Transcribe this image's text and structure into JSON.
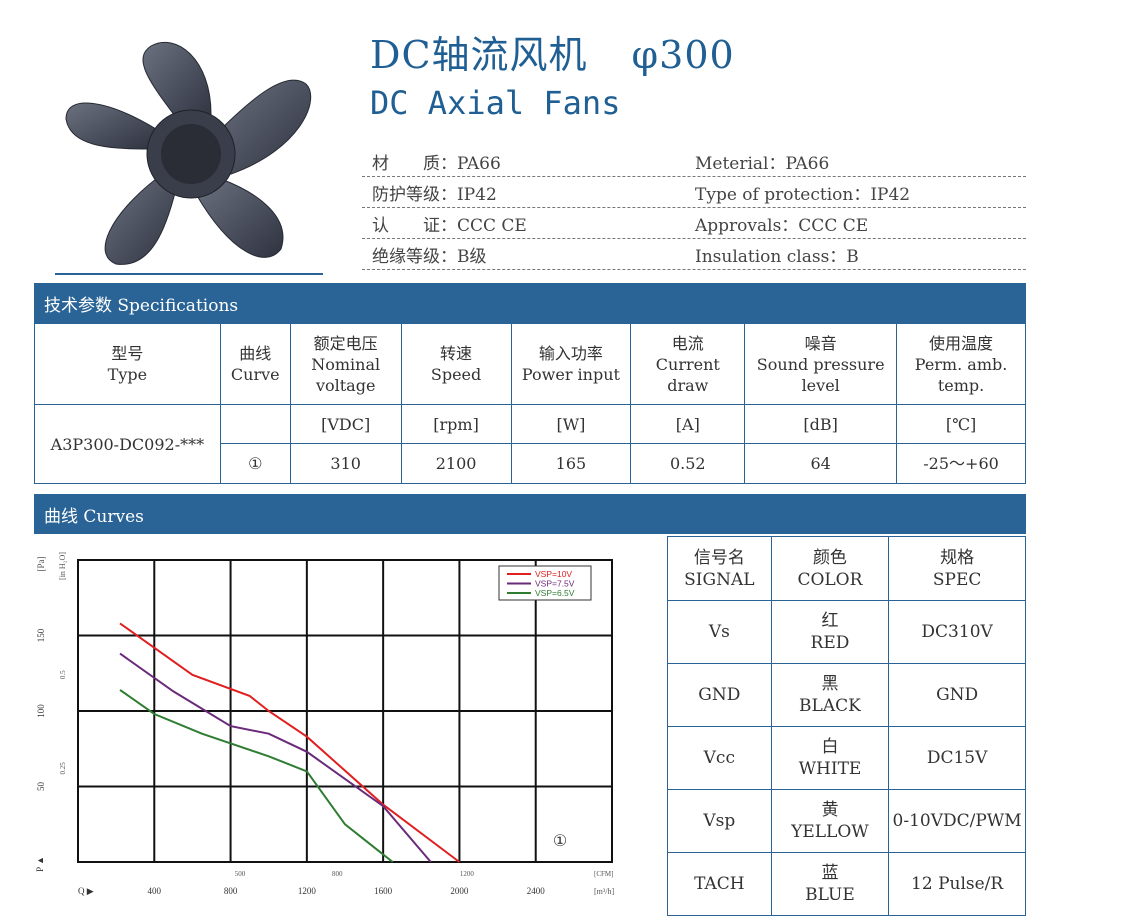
{
  "header": {
    "title_cn": "DC轴流风机",
    "title_size": "φ300",
    "title_en": "DC Axial Fans",
    "info": [
      {
        "cn": "材　　质：PA66",
        "en": "Meterial：PA66"
      },
      {
        "cn": "防护等级：IP42",
        "en": "Type of protection：IP42"
      },
      {
        "cn": "认　　证：CCC CE",
        "en": "Approvals：CCC CE"
      },
      {
        "cn": "绝缘等级：B级",
        "en": "Insulation class：B"
      }
    ]
  },
  "specs": {
    "bar": "技术参数 Specifications",
    "headers": [
      {
        "cn": "型号",
        "en": "Type"
      },
      {
        "cn": "曲线",
        "en": "Curve"
      },
      {
        "cn": "额定电压",
        "en1": "Nominal",
        "en2": "voltage"
      },
      {
        "cn": "转速",
        "en": "Speed"
      },
      {
        "cn": "输入功率",
        "en": "Power input"
      },
      {
        "cn": "电流",
        "en1": "Current",
        "en2": "draw"
      },
      {
        "cn": "噪音",
        "en1": "Sound pressure",
        "en2": "level"
      },
      {
        "cn": "使用温度",
        "en1": "Perm. amb.",
        "en2": "temp."
      }
    ],
    "units": [
      "[VDC]",
      "[rpm]",
      "[W]",
      "[A]",
      "[dB]",
      "[℃]"
    ],
    "model": "A3P300-DC092-***",
    "row": {
      "curve": "①",
      "voltage": "310",
      "speed": "2100",
      "power": "165",
      "current": "0.52",
      "noise": "64",
      "temp": "-25～+60"
    }
  },
  "curves": {
    "bar": "曲线 Curves",
    "y_unit_pa": "[Pa]",
    "y_unit_inh2o": "[in H₂O]",
    "y_ticks_pa": [
      "50",
      "100",
      "150"
    ],
    "y_ticks_inh2o": [
      "0.25",
      "0.5"
    ],
    "p_label": "P ▲",
    "q_label": "Q ▶",
    "x_ticks_m3h": [
      "400",
      "800",
      "1200",
      "1600",
      "2000",
      "2400"
    ],
    "x_unit_m3h": "[m³/h]",
    "x_ticks_cfm": [
      "500",
      "800",
      "1200"
    ],
    "x_unit_cfm": "[CFM]",
    "curve_marker": "①"
  },
  "chart_data": {
    "type": "line",
    "xlabel": "Q",
    "ylabel": "P",
    "xlim": [
      0,
      2800
    ],
    "ylim": [
      0,
      200
    ],
    "grid": true,
    "legend_position": "top-right",
    "series": [
      {
        "name": "VSP=10V",
        "color": "#e02020",
        "points": [
          [
            220,
            158
          ],
          [
            600,
            124
          ],
          [
            900,
            110
          ],
          [
            1000,
            100
          ],
          [
            1200,
            83
          ],
          [
            1600,
            38
          ],
          [
            2000,
            0
          ]
        ]
      },
      {
        "name": "VSP=7.5V",
        "color": "#6a2a7a",
        "points": [
          [
            220,
            138
          ],
          [
            500,
            113
          ],
          [
            800,
            90
          ],
          [
            1000,
            85
          ],
          [
            1200,
            73
          ],
          [
            1600,
            37
          ],
          [
            1850,
            0
          ]
        ]
      },
      {
        "name": "VSP=6.5V",
        "color": "#2e7d32",
        "points": [
          [
            220,
            114
          ],
          [
            400,
            98
          ],
          [
            650,
            85
          ],
          [
            1000,
            70
          ],
          [
            1200,
            60
          ],
          [
            1400,
            25
          ],
          [
            1650,
            0
          ]
        ]
      }
    ]
  },
  "signal": {
    "headers": [
      {
        "cn": "信号名",
        "en": "SIGNAL"
      },
      {
        "cn": "颜色",
        "en": "COLOR"
      },
      {
        "cn": "规格",
        "en": "SPEC"
      }
    ],
    "rows": [
      {
        "signal": "Vs",
        "color_cn": "红",
        "color_en": "RED",
        "spec": "DC310V"
      },
      {
        "signal": "GND",
        "color_cn": "黑",
        "color_en": "BLACK",
        "spec": "GND"
      },
      {
        "signal": "Vcc",
        "color_cn": "白",
        "color_en": "WHITE",
        "spec": "DC15V"
      },
      {
        "signal": "Vsp",
        "color_cn": "黄",
        "color_en": "YELLOW",
        "spec": "0-10VDC/PWM"
      },
      {
        "signal": "TACH",
        "color_cn": "蓝",
        "color_en": "BLUE",
        "spec": "12 Pulse/R"
      }
    ]
  }
}
